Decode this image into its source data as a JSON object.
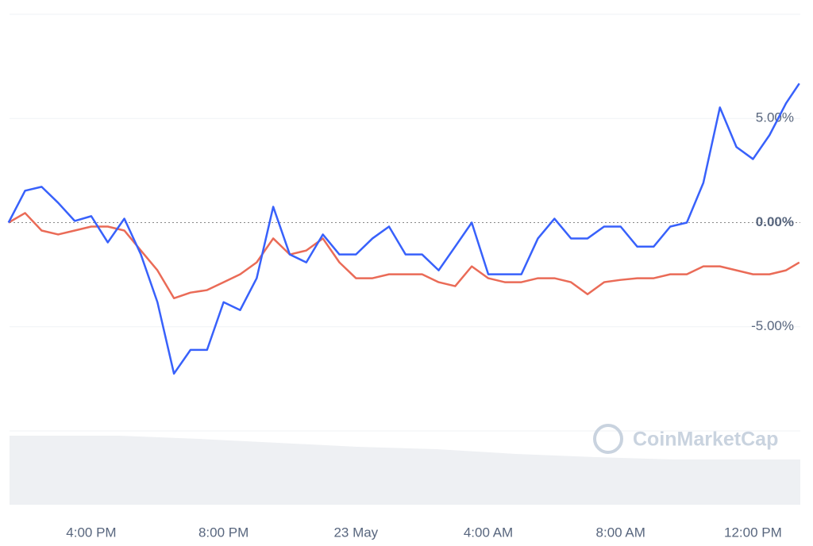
{
  "chart_data": {
    "type": "line",
    "watermark": "CoinMarketCap",
    "x": [
      13.5,
      14,
      14.5,
      15,
      15.5,
      16,
      16.5,
      17,
      17.5,
      18,
      18.5,
      19,
      19.5,
      20,
      20.5,
      21,
      21.5,
      22,
      22.5,
      23,
      23.5,
      24,
      24.5,
      25,
      25.5,
      26,
      26.5,
      27,
      27.5,
      28,
      28.5,
      29,
      29.5,
      30,
      30.5,
      31,
      31.5,
      32,
      32.5,
      33,
      33.5,
      34,
      34.5,
      35,
      35.5,
      36,
      36.5,
      37,
      37.4
    ],
    "xlim": [
      13.53,
      37.43
    ],
    "xticks": [
      {
        "value": 16,
        "label": "4:00 PM"
      },
      {
        "value": 20,
        "label": "8:00 PM"
      },
      {
        "value": 24,
        "label": "23 May"
      },
      {
        "value": 28,
        "label": "4:00 AM"
      },
      {
        "value": 32,
        "label": "8:00 AM"
      },
      {
        "value": 36,
        "label": "12:00 PM"
      }
    ],
    "ylim": [
      -10,
      10
    ],
    "yticks": [
      {
        "value": -5,
        "label": "-5.00%"
      },
      {
        "value": 0,
        "label": "0.00%"
      },
      {
        "value": 5,
        "label": "5.00%"
      }
    ],
    "series": [
      {
        "color": "#3861fb",
        "values": [
          0,
          1.53,
          1.72,
          0.95,
          0.08,
          0.31,
          -0.95,
          0.19,
          -1.53,
          -3.82,
          -7.25,
          -6.11,
          -6.11,
          -3.82,
          -4.2,
          -2.67,
          0.76,
          -1.53,
          -1.91,
          -0.57,
          -1.53,
          -1.53,
          -0.76,
          -0.19,
          -1.53,
          -1.53,
          -2.29,
          -1.15,
          0,
          -2.48,
          -2.48,
          -2.48,
          -0.76,
          0.19,
          -0.76,
          -0.76,
          -0.19,
          -0.19,
          -1.15,
          -1.15,
          -0.19,
          0,
          1.91,
          5.53,
          3.63,
          3.05,
          4.2,
          5.73,
          6.68
        ]
      },
      {
        "color": "#ea6b57",
        "values": [
          0,
          0.46,
          -0.38,
          -0.57,
          -0.38,
          -0.19,
          -0.19,
          -0.38,
          -1.34,
          -2.29,
          -3.63,
          -3.36,
          -3.24,
          -2.86,
          -2.48,
          -1.91,
          -0.76,
          -1.53,
          -1.34,
          -0.76,
          -1.91,
          -2.67,
          -2.67,
          -2.48,
          -2.48,
          -2.48,
          -2.86,
          -3.05,
          -2.1,
          -2.67,
          -2.86,
          -2.86,
          -2.67,
          -2.67,
          -2.86,
          -3.44,
          -2.86,
          -2.75,
          -2.67,
          -2.67,
          -2.48,
          -2.48,
          -2.1,
          -2.1,
          -2.29,
          -2.48,
          -2.48,
          -2.29,
          -1.91
        ]
      }
    ]
  }
}
